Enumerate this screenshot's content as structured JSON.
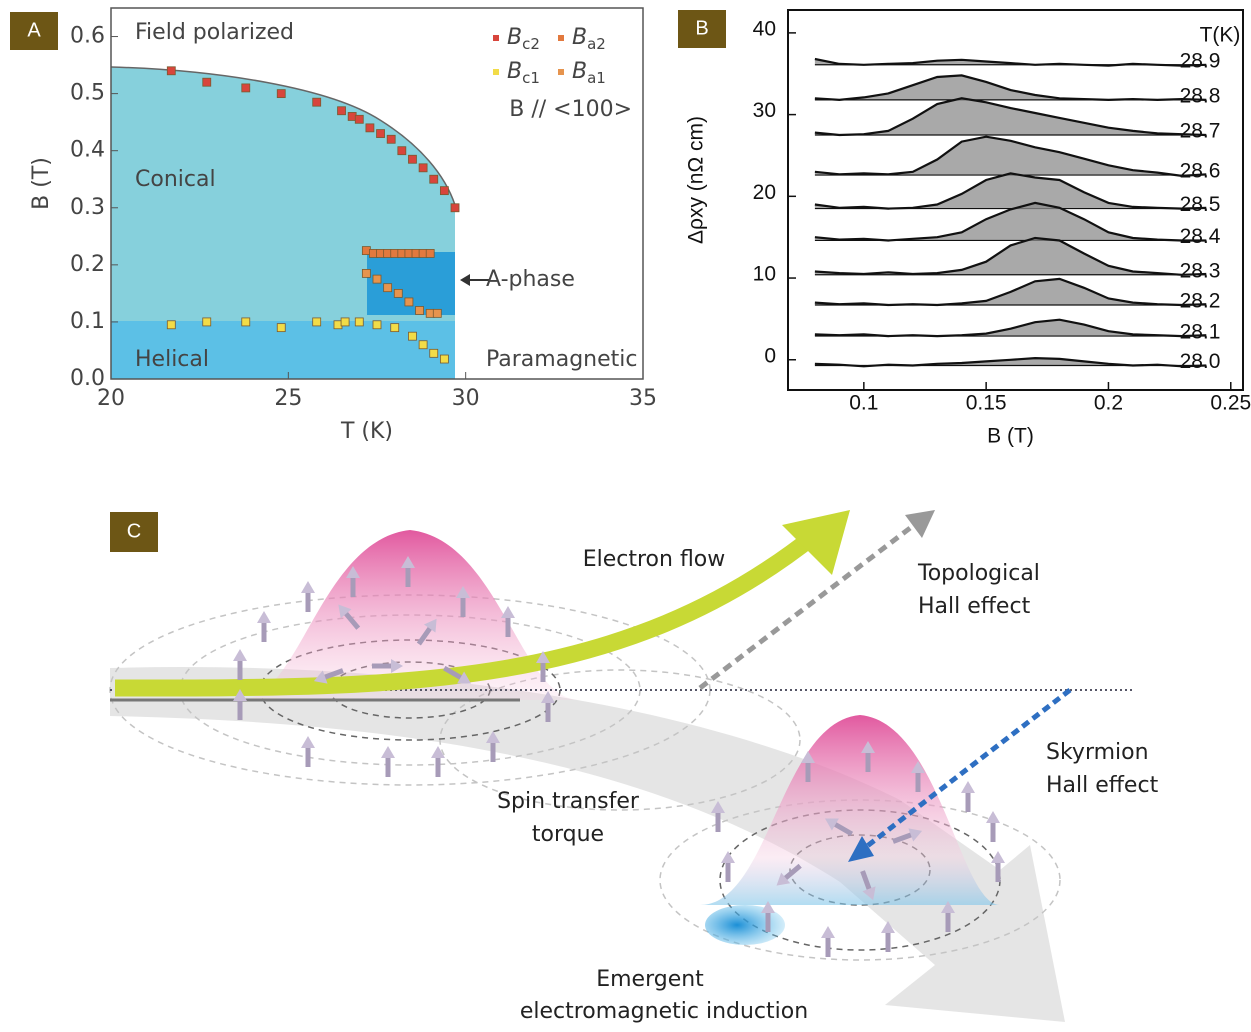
{
  "chart_data": [
    {
      "type": "scatter",
      "panel": "A",
      "xlabel": "T (K)",
      "ylabel": "B (T)",
      "xlim": [
        20,
        35
      ],
      "ylim": [
        0,
        0.65
      ],
      "xticks": [
        20,
        25,
        30,
        35
      ],
      "yticks": [
        {
          "value": 0,
          "label": "0.0"
        },
        0.1,
        0.2,
        0.3,
        0.4,
        0.5,
        0.6
      ],
      "annotations": [
        "Field polarized",
        "Conical",
        "A-phase",
        "Helical",
        "Paramagnetic"
      ],
      "legend_note": "B // <100>",
      "series": [
        {
          "name": "Bc2",
          "color": "#d8453c",
          "x": [
            21.7,
            22.7,
            23.8,
            24.8,
            25.8,
            26.5,
            26.8,
            27.0,
            27.3,
            27.6,
            27.9,
            28.2,
            28.5,
            28.8,
            29.1,
            29.4,
            29.7
          ],
          "values": [
            0.54,
            0.52,
            0.51,
            0.5,
            0.485,
            0.47,
            0.46,
            0.455,
            0.44,
            0.43,
            0.42,
            0.4,
            0.385,
            0.37,
            0.35,
            0.33,
            0.3
          ]
        },
        {
          "name": "Ba2",
          "color": "#e2793e",
          "x": [
            27.2,
            27.4,
            27.6,
            27.8,
            28.0,
            28.2,
            28.4,
            28.6,
            28.8,
            29.0
          ],
          "values": [
            0.225,
            0.22,
            0.22,
            0.22,
            0.22,
            0.22,
            0.22,
            0.22,
            0.22,
            0.22
          ]
        },
        {
          "name": "Bc1",
          "color": "#f2dc48",
          "x": [
            21.7,
            22.7,
            23.8,
            24.8,
            25.8,
            26.4,
            26.6,
            27.0,
            27.5,
            28.0,
            28.5,
            28.8,
            29.1,
            29.4
          ],
          "values": [
            0.095,
            0.1,
            0.1,
            0.09,
            0.1,
            0.095,
            0.1,
            0.1,
            0.095,
            0.09,
            0.075,
            0.06,
            0.045,
            0.035
          ]
        },
        {
          "name": "Ba1",
          "color": "#e6944e",
          "x": [
            27.2,
            27.5,
            27.8,
            28.1,
            28.4,
            28.7,
            29.0,
            29.2
          ],
          "values": [
            0.185,
            0.175,
            0.16,
            0.15,
            0.135,
            0.12,
            0.115,
            0.115
          ]
        }
      ]
    },
    {
      "type": "line",
      "panel": "B",
      "xlabel": "B (T)",
      "ylabel": "Δρxy (nΩ cm)",
      "legend_title": "T(K)",
      "xlim": [
        0.069,
        0.255
      ],
      "ylim": [
        -3.7,
        42.8
      ],
      "xticks": [
        0.1,
        0.15,
        0.2,
        0.25
      ],
      "yticks": [
        0,
        10,
        20,
        30,
        40
      ],
      "color": "#111111",
      "fill_color": "#8c8c8c",
      "x": [
        0.08,
        0.09,
        0.1,
        0.11,
        0.12,
        0.13,
        0.14,
        0.15,
        0.16,
        0.17,
        0.18,
        0.19,
        0.2,
        0.21,
        0.22,
        0.23,
        0.24
      ],
      "series": [
        {
          "name": "28.9",
          "baseline": 36.1,
          "values": [
            36.8,
            36.2,
            36.1,
            36.2,
            36.3,
            36.6,
            36.7,
            36.5,
            36.3,
            36.1,
            36.2,
            36.1,
            36.0,
            36.2,
            36.1,
            36.0,
            36.1
          ]
        },
        {
          "name": "28.8",
          "baseline": 31.8,
          "values": [
            32.0,
            31.8,
            32.1,
            32.6,
            33.6,
            34.6,
            34.8,
            34.0,
            33.0,
            32.4,
            32.0,
            31.9,
            31.8,
            31.9,
            31.8,
            31.9,
            31.8
          ]
        },
        {
          "name": "28.7",
          "baseline": 27.5,
          "values": [
            27.8,
            27.5,
            27.6,
            28.0,
            29.5,
            31.3,
            32.0,
            31.5,
            30.8,
            30.2,
            29.6,
            29.0,
            28.4,
            28.0,
            27.7,
            27.6,
            27.5
          ]
        },
        {
          "name": "28.6",
          "baseline": 22.6,
          "values": [
            23.0,
            22.7,
            22.8,
            22.7,
            23.0,
            24.5,
            26.7,
            27.3,
            26.8,
            26.0,
            25.4,
            24.6,
            23.8,
            23.2,
            22.9,
            22.5,
            22.7
          ]
        },
        {
          "name": "28.5",
          "baseline": 18.5,
          "values": [
            19.0,
            18.6,
            18.7,
            18.5,
            18.6,
            19.0,
            20.3,
            22.0,
            22.8,
            22.3,
            22.0,
            20.5,
            19.2,
            18.7,
            18.6,
            18.5,
            18.6
          ]
        },
        {
          "name": "28.4",
          "baseline": 14.6,
          "values": [
            15.0,
            14.7,
            14.8,
            14.6,
            14.8,
            15.0,
            15.6,
            17.2,
            18.4,
            19.2,
            18.6,
            17.2,
            15.6,
            14.9,
            14.7,
            14.6,
            14.6
          ]
        },
        {
          "name": "28.3",
          "baseline": 10.4,
          "values": [
            10.8,
            10.6,
            10.5,
            10.7,
            10.5,
            10.6,
            11.0,
            12.0,
            14.0,
            14.9,
            14.6,
            13.0,
            11.5,
            10.8,
            10.6,
            10.4,
            10.5
          ]
        },
        {
          "name": "28.2",
          "baseline": 6.7,
          "values": [
            7.0,
            6.8,
            6.9,
            6.7,
            6.8,
            6.7,
            6.9,
            7.2,
            8.3,
            9.6,
            9.9,
            8.8,
            7.5,
            7.0,
            6.8,
            6.7,
            6.8
          ]
        },
        {
          "name": "28.1",
          "baseline": 2.9,
          "values": [
            3.1,
            3.0,
            3.1,
            2.9,
            3.0,
            2.9,
            3.0,
            3.2,
            3.8,
            4.6,
            4.9,
            4.3,
            3.5,
            3.1,
            3.0,
            2.9,
            3.0
          ]
        },
        {
          "name": "28.0",
          "baseline": -0.7,
          "values": [
            -0.5,
            -0.6,
            -0.8,
            -0.6,
            -0.7,
            -0.5,
            -0.4,
            -0.2,
            0.0,
            0.2,
            0.1,
            -0.2,
            -0.5,
            -0.7,
            -0.6,
            -0.8,
            -0.7
          ]
        }
      ]
    }
  ],
  "illustration": {
    "panel": "C",
    "electron_flow": "Electron flow",
    "topological_hall": [
      "Topological",
      "Hall effect"
    ],
    "skyrmion_hall": [
      "Skyrmion",
      "Hall effect"
    ],
    "spin_transfer": [
      "Spin transfer",
      "torque"
    ],
    "emergent_induction": [
      "Emergent",
      "electromagnetic induction"
    ]
  }
}
